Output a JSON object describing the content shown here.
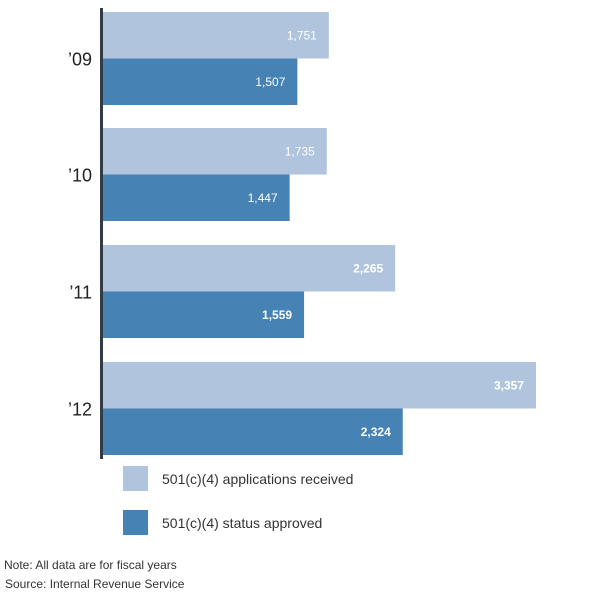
{
  "chart_data": {
    "type": "bar",
    "orientation": "horizontal",
    "categories": [
      "’09",
      "’10",
      "’11",
      "’12"
    ],
    "series": [
      {
        "name": "501(c)(4) applications received",
        "color": "#b0c4de",
        "values": [
          1751,
          1735,
          2265,
          3357
        ],
        "labels": [
          "1,751",
          "1,735",
          "2,265",
          "3,357"
        ]
      },
      {
        "name": "501(c)(4) status approved",
        "color": "#4682b4",
        "values": [
          1507,
          1447,
          1559,
          2324
        ],
        "labels": [
          "1,507",
          "1,447",
          "1,559",
          "2,324"
        ]
      }
    ],
    "xlim": [
      0,
      3357
    ],
    "grid": false,
    "legend": "bottom"
  },
  "notes": {
    "note": "Note: All data are for fiscal years",
    "source": "Source: Internal Revenue Service"
  }
}
